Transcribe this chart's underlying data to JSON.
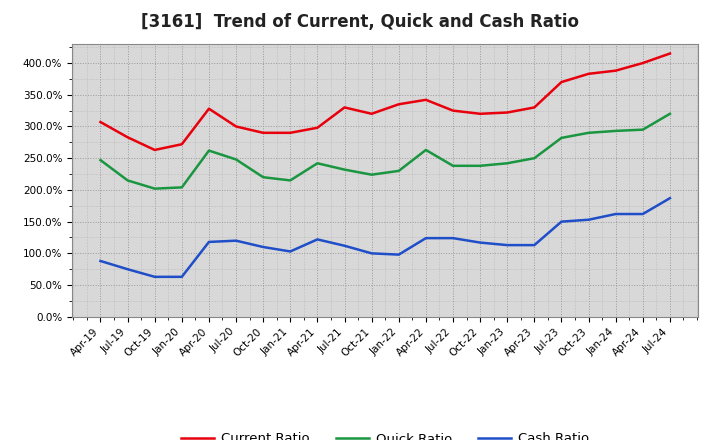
{
  "title": "[3161]  Trend of Current, Quick and Cash Ratio",
  "x_labels": [
    "Apr-19",
    "Jul-19",
    "Oct-19",
    "Jan-20",
    "Apr-20",
    "Jul-20",
    "Oct-20",
    "Jan-21",
    "Apr-21",
    "Jul-21",
    "Oct-21",
    "Jan-22",
    "Apr-22",
    "Jul-22",
    "Oct-22",
    "Jan-23",
    "Apr-23",
    "Jul-23",
    "Oct-23",
    "Jan-24",
    "Apr-24",
    "Jul-24"
  ],
  "current_ratio": [
    307,
    283,
    263,
    272,
    328,
    300,
    290,
    290,
    298,
    330,
    320,
    335,
    342,
    325,
    320,
    322,
    330,
    370,
    383,
    388,
    400,
    415
  ],
  "quick_ratio": [
    247,
    215,
    202,
    204,
    262,
    248,
    220,
    215,
    242,
    232,
    224,
    230,
    263,
    238,
    238,
    242,
    250,
    282,
    290,
    293,
    295,
    320
  ],
  "cash_ratio": [
    88,
    75,
    63,
    63,
    118,
    120,
    110,
    103,
    122,
    112,
    100,
    98,
    124,
    124,
    117,
    113,
    113,
    150,
    153,
    162,
    162,
    187
  ],
  "current_color": "#e8000d",
  "quick_color": "#1a9641",
  "cash_color": "#1f4ec8",
  "bg_color": "#ffffff",
  "plot_bg_color": "#d8d8d8",
  "ylim": [
    0,
    430
  ],
  "yticks": [
    0,
    50,
    100,
    150,
    200,
    250,
    300,
    350,
    400
  ],
  "line_width": 1.8,
  "title_fontsize": 12,
  "legend_fontsize": 9.5,
  "tick_fontsize": 7.5
}
